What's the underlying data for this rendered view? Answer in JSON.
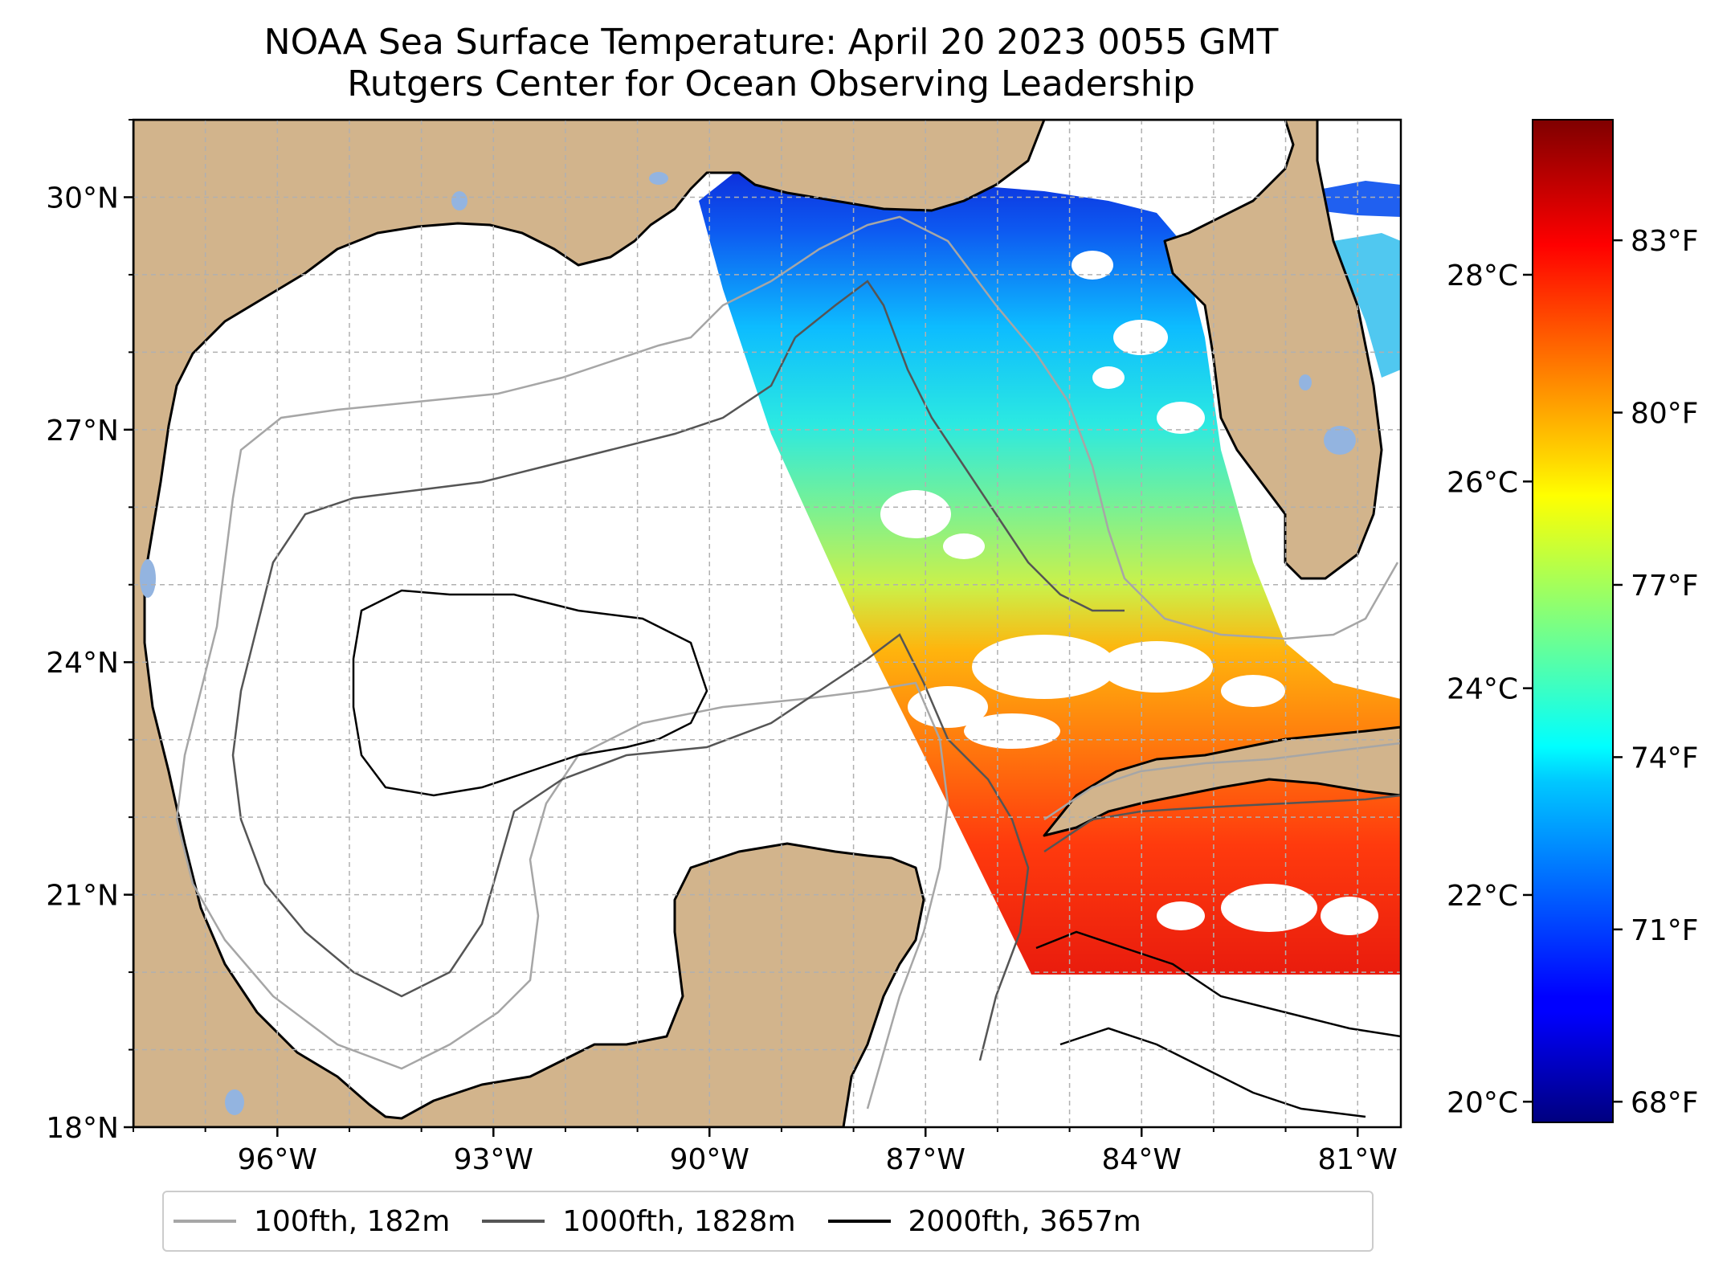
{
  "title": {
    "line1": "NOAA Sea Surface Temperature: April 20 2023 0055 GMT",
    "line2": "Rutgers Center for Ocean Observing Leadership"
  },
  "map": {
    "lon_range": [
      -98,
      -80.4
    ],
    "lat_range": [
      18,
      31
    ],
    "lat_ticks": [
      {
        "value": 30,
        "label": "30°N"
      },
      {
        "value": 27,
        "label": "27°N"
      },
      {
        "value": 24,
        "label": "24°N"
      },
      {
        "value": 21,
        "label": "21°N"
      },
      {
        "value": 18,
        "label": "18°N"
      }
    ],
    "lon_ticks": [
      {
        "value": -96,
        "label": "96°W"
      },
      {
        "value": -93,
        "label": "93°W"
      },
      {
        "value": -90,
        "label": "90°W"
      },
      {
        "value": -87,
        "label": "87°W"
      },
      {
        "value": -84,
        "label": "84°W"
      },
      {
        "value": -81,
        "label": "81°W"
      }
    ],
    "gridlines": true,
    "colors": {
      "land": "#d2b48c",
      "ocean": "#ffffff",
      "lakes": "#93b4e0",
      "coastline": "#000000",
      "grid": "#b0b0b0"
    }
  },
  "legend": {
    "placement": "bottom-center",
    "items": [
      {
        "label": "100fth, 182m",
        "color": "#a6a6a6"
      },
      {
        "label": "1000fth, 1828m",
        "color": "#555555"
      },
      {
        "label": "2000fth, 3657m",
        "color": "#000000"
      }
    ]
  },
  "colorbar": {
    "colormap": "jet",
    "range_c": [
      19.8,
      29.5
    ],
    "celsius_ticks": [
      {
        "value": 28,
        "label": "28°C"
      },
      {
        "value": 26,
        "label": "26°C"
      },
      {
        "value": 24,
        "label": "24°C"
      },
      {
        "value": 22,
        "label": "22°C"
      },
      {
        "value": 20,
        "label": "20°C"
      }
    ],
    "fahrenheit_ticks": [
      {
        "value": 83,
        "label": "83°F"
      },
      {
        "value": 80,
        "label": "80°F"
      },
      {
        "value": 77,
        "label": "77°F"
      },
      {
        "value": 74,
        "label": "74°F"
      },
      {
        "value": 71,
        "label": "71°F"
      },
      {
        "value": 68,
        "label": "68°F"
      }
    ]
  }
}
